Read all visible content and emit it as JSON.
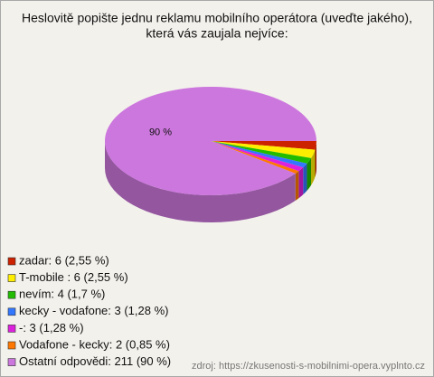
{
  "chart_data": {
    "type": "pie",
    "title": [
      "Heslovitě popište jednu reklamu mobilního operátora (uveďte jakého),",
      "která vás zaujala nejvíce:"
    ],
    "categories": [
      "zadar: 6 (2,55 %)",
      "T-mobile  : 6 (2,55 %)",
      "nevím: 4 (1,7 %)",
      "kecky - vodafone: 3 (1,28 %)",
      "-: 3 (1,28 %)",
      "Vodafone - kecky: 2 (0,85 %)",
      "Ostatní odpovědi: 211 (90 %)"
    ],
    "values": [
      6,
      6,
      4,
      3,
      3,
      2,
      211
    ],
    "value_labels": [
      null,
      null,
      null,
      null,
      null,
      null,
      "90 %"
    ],
    "colors": [
      "#cc2200",
      "#ffee00",
      "#22bb00",
      "#3377ff",
      "#dd22dd",
      "#ff7700",
      "#cc77dd"
    ],
    "source": "zdroj: https://zkusenosti-s-mobilnimi-opera.vyplnto.cz"
  }
}
